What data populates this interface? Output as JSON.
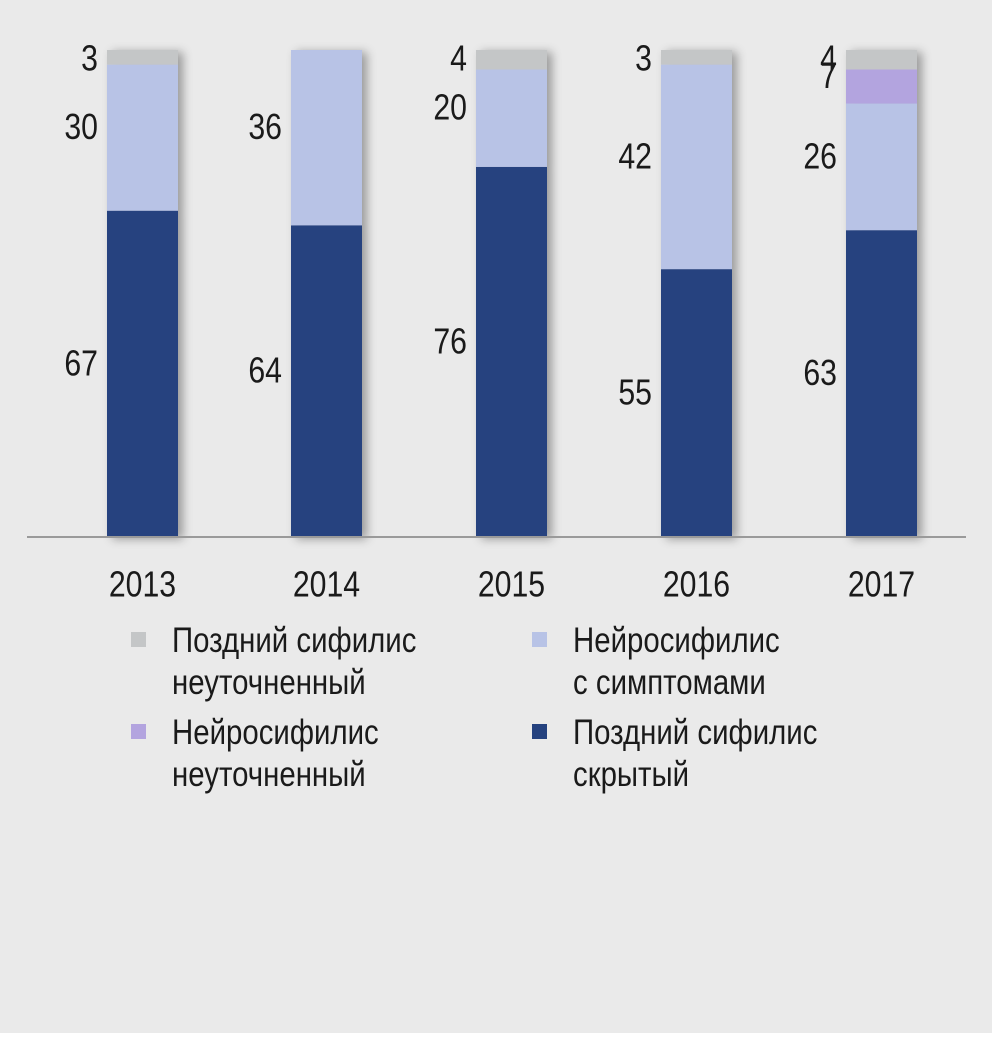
{
  "chart_data": {
    "type": "bar",
    "stacked": true,
    "categories": [
      "2013",
      "2014",
      "2015",
      "2016",
      "2017"
    ],
    "series": [
      {
        "key": "late_latent",
        "name": "Поздний сифилис скрытый",
        "legend_lines": [
          "Поздний сифилис",
          "скрытый"
        ],
        "color": "#25427f",
        "values": [
          67,
          64,
          76,
          55,
          63
        ]
      },
      {
        "key": "neuro_symptomatic",
        "name": "Нейросифилис с симптомами",
        "legend_lines": [
          "Нейросифилис",
          "с симптомами"
        ],
        "color": "#b8c3e6",
        "values": [
          30,
          36,
          20,
          42,
          26
        ]
      },
      {
        "key": "neuro_unspecified",
        "name": "Нейросифилис неуточненный",
        "legend_lines": [
          "Нейросифилис",
          "неуточненный"
        ],
        "color": "#b3a4df",
        "values": [
          0,
          0,
          0,
          0,
          7
        ]
      },
      {
        "key": "late_unspecified",
        "name": "Поздний сифилис неуточненный",
        "legend_lines": [
          "Поздний сифилис",
          "неуточненный"
        ],
        "color": "#c4c6c7",
        "values": [
          3,
          0,
          4,
          3,
          4
        ]
      }
    ],
    "segment_labels": [
      [
        "67",
        "30",
        null,
        "3"
      ],
      [
        "64",
        "36",
        null,
        null
      ],
      [
        "76",
        "20",
        null,
        "4"
      ],
      [
        "55",
        "42",
        null,
        "3"
      ],
      [
        "63",
        "26",
        "7",
        "4"
      ]
    ],
    "ylim": [
      0,
      100
    ],
    "unit": "%",
    "grid": false,
    "legend_position": "bottom",
    "legend_order": [
      "late_unspecified",
      "neuro_symptomatic",
      "neuro_unspecified",
      "late_latent"
    ],
    "title": "",
    "xlabel": "",
    "ylabel": "",
    "colors": {
      "background": "#eaeaea",
      "baseline": "#9a9a9a",
      "text": "#1a1a1a"
    }
  }
}
